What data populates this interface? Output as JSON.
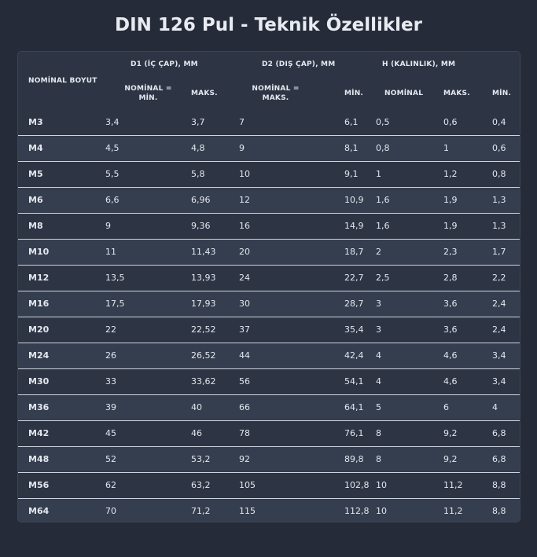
{
  "title": "DIN 126 Pul - Teknik Özellikler",
  "headers": {
    "nominal_size": "NOMİNAL BOYUT",
    "d1_group": "D1 (İÇ ÇAP), MM",
    "d2_group": "D2 (DIŞ ÇAP), MM",
    "h_group": "H (KALINLIK), MM",
    "d1_nominal_min": "NOMİNAL = MİN.",
    "d1_max": "MAKS.",
    "d2_nominal_max": "NOMİNAL = MAKS.",
    "d2_min": "MİN.",
    "h_nominal": "NOMİNAL",
    "h_max": "MAKS.",
    "h_min": "MİN."
  },
  "rows": [
    [
      "M3",
      "3,4",
      "3,7",
      "7",
      "6,1",
      "0,5",
      "0,6",
      "0,4"
    ],
    [
      "M4",
      "4,5",
      "4,8",
      "9",
      "8,1",
      "0,8",
      "1",
      "0,6"
    ],
    [
      "M5",
      "5,5",
      "5,8",
      "10",
      "9,1",
      "1",
      "1,2",
      "0,8"
    ],
    [
      "M6",
      "6,6",
      "6,96",
      "12",
      "10,9",
      "1,6",
      "1,9",
      "1,3"
    ],
    [
      "M8",
      "9",
      "9,36",
      "16",
      "14,9",
      "1,6",
      "1,9",
      "1,3"
    ],
    [
      "M10",
      "11",
      "11,43",
      "20",
      "18,7",
      "2",
      "2,3",
      "1,7"
    ],
    [
      "M12",
      "13,5",
      "13,93",
      "24",
      "22,7",
      "2,5",
      "2,8",
      "2,2"
    ],
    [
      "M16",
      "17,5",
      "17,93",
      "30",
      "28,7",
      "3",
      "3,6",
      "2,4"
    ],
    [
      "M20",
      "22",
      "22,52",
      "37",
      "35,4",
      "3",
      "3,6",
      "2,4"
    ],
    [
      "M24",
      "26",
      "26,52",
      "44",
      "42,4",
      "4",
      "4,6",
      "3,4"
    ],
    [
      "M30",
      "33",
      "33,62",
      "56",
      "54,1",
      "4",
      "4,6",
      "3,4"
    ],
    [
      "M36",
      "39",
      "40",
      "66",
      "64,1",
      "5",
      "6",
      "4"
    ],
    [
      "M42",
      "45",
      "46",
      "78",
      "76,1",
      "8",
      "9,2",
      "6,8"
    ],
    [
      "M48",
      "52",
      "53,2",
      "92",
      "89,8",
      "8",
      "9,2",
      "6,8"
    ],
    [
      "M56",
      "62",
      "63,2",
      "105",
      "102,8",
      "10",
      "11,2",
      "8,8"
    ],
    [
      "M64",
      "70",
      "71,2",
      "115",
      "112,8",
      "10",
      "11,2",
      "8,8"
    ]
  ]
}
